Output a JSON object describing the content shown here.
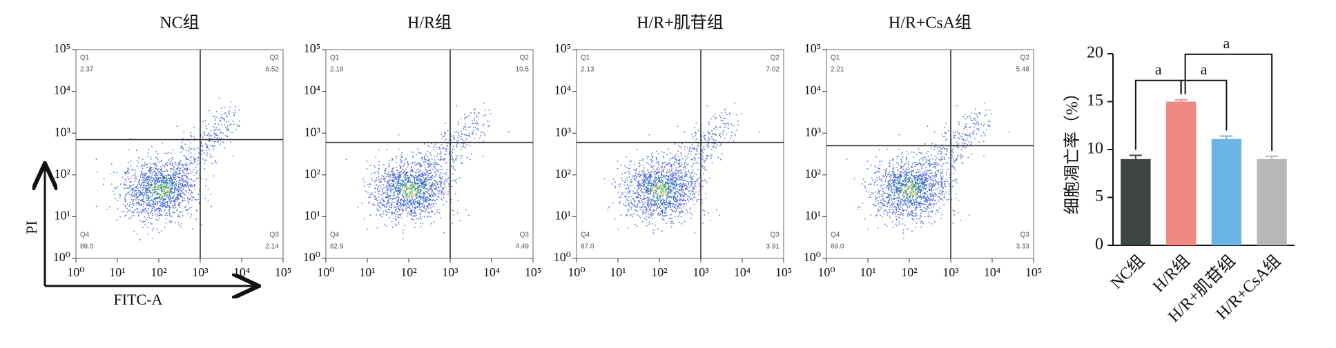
{
  "flow_panels": [
    {
      "title": "NC组",
      "quadrants": {
        "Q1": "2.37",
        "Q2": "6.52",
        "Q3": "2.14",
        "Q4": "89.0"
      },
      "gate_x": 1000,
      "gate_y": 700
    },
    {
      "title": "H/R组",
      "quadrants": {
        "Q1": "2.18",
        "Q2": "10.5",
        "Q3": "4.49",
        "Q4": "82.9"
      },
      "gate_x": 1000,
      "gate_y": 600
    },
    {
      "title": "H/R+肌苷组",
      "quadrants": {
        "Q1": "2.13",
        "Q2": "7.02",
        "Q3": "3.91",
        "Q4": "87.0"
      },
      "gate_x": 1000,
      "gate_y": 600
    },
    {
      "title": "H/R+CsA组",
      "quadrants": {
        "Q1": "2.21",
        "Q2": "5.48",
        "Q3": "3.33",
        "Q4": "89.0"
      },
      "gate_x": 1000,
      "gate_y": 500
    }
  ],
  "flow_axes": {
    "x_label": "FITC-A",
    "y_label": "PI",
    "log": true,
    "lim": [
      1,
      100000
    ],
    "ticks": [
      {
        "value": 1,
        "label": "10⁰"
      },
      {
        "value": 10,
        "label": "10¹"
      },
      {
        "value": 100,
        "label": "10²"
      },
      {
        "value": 1000,
        "label": "10³"
      },
      {
        "value": 10000,
        "label": "10⁴"
      },
      {
        "value": 100000,
        "label": "10⁵"
      }
    ]
  },
  "chart_data": {
    "type": "bar",
    "y_label": "细胞凋亡率（%）",
    "categories": [
      "NC组",
      "H/R组",
      "H/R+肌苷组",
      "H/R+CsA组"
    ],
    "values": [
      9.0,
      15.0,
      11.1,
      9.0
    ],
    "errors": [
      0.4,
      0.2,
      0.3,
      0.3
    ],
    "colors": [
      "#3d4444",
      "#f08a80",
      "#6ab4e6",
      "#b7b7ba"
    ],
    "ylim": [
      0,
      20
    ],
    "yticks": [
      0,
      5,
      10,
      15,
      20
    ],
    "significance": [
      {
        "pair": [
          0,
          1
        ],
        "label": "a"
      },
      {
        "pair": [
          1,
          2
        ],
        "label": "a"
      },
      {
        "pair": [
          1,
          3
        ],
        "label": "a"
      }
    ]
  }
}
